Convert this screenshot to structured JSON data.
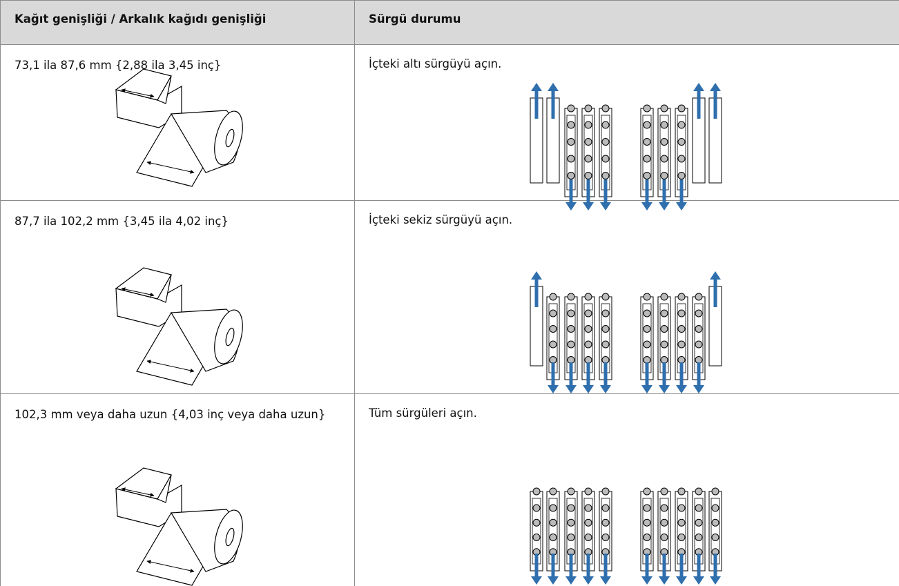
{
  "table": {
    "header": [
      "Kağıt genişliği / Arkalık kağıdı genişliği",
      "Sürgü durumu"
    ],
    "rows": [
      [
        "73,1 ila 87,6 mm {2,88 ila 3,45 inç}",
        "İçteki altı sürgüyü açın."
      ],
      [
        "87,7 ila 102,2 mm {3,45 ila 4,02 inç}",
        "İçteki sekiz sürgüyü açın."
      ],
      [
        "102,3 mm veya daha uzun {4,03 inç veya daha uzun}",
        "Tüm sürgüleri açın."
      ]
    ]
  }
}
